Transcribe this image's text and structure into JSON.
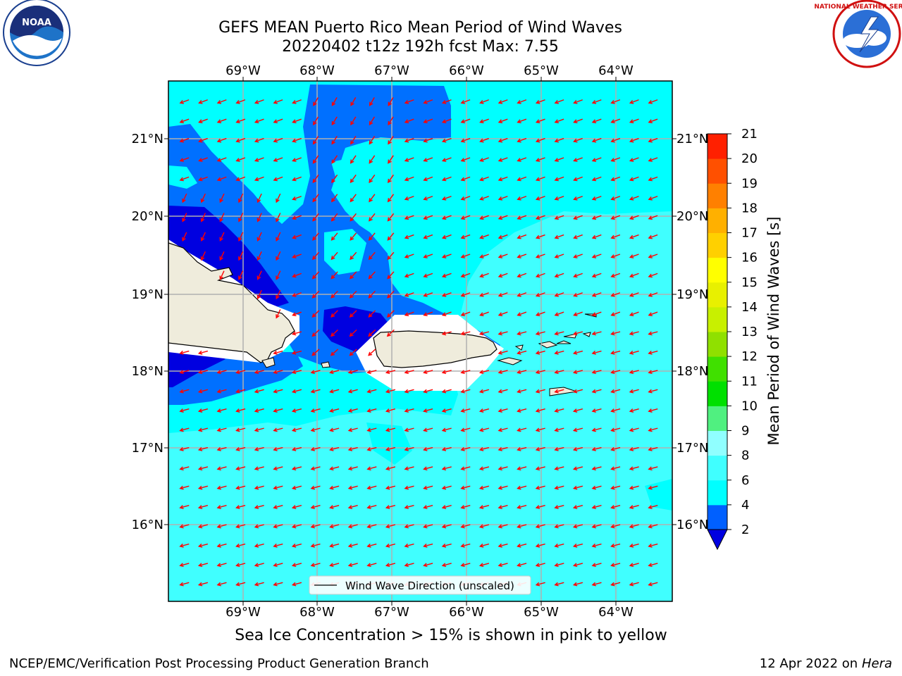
{
  "header": {
    "title_line1": "GEFS MEAN Puerto Rico Mean Period of Wind Waves",
    "title_line2": "20220402 t12z 192h fcst   Max: 7.55"
  },
  "logos": {
    "left": "NOAA",
    "right": "NATIONAL WEATHER SERVICE",
    "noaa_ring_text": "NATIONAL OCEANIC AND ATMOSPHERIC ADMINISTRATION · U.S. DEPARTMENT OF COMMERCE"
  },
  "map": {
    "lon_labels": [
      "69°W",
      "68°W",
      "67°W",
      "66°W",
      "65°W",
      "64°W"
    ],
    "lat_labels": [
      "21°N",
      "20°N",
      "19°N",
      "18°N",
      "17°N",
      "16°N"
    ],
    "legend_label": "Wind Wave Direction (unscaled)",
    "wave_direction": "toward west-southwest",
    "colors": {
      "land": "#efecdc",
      "coastline": "#000000",
      "arrows": "#ff0000",
      "grid": "#b0b0b0"
    }
  },
  "colorbar": {
    "label": "Mean Period of Wind Waves [s]",
    "levels": [
      2,
      4,
      6,
      8,
      9,
      10,
      11,
      12,
      13,
      14,
      15,
      16,
      17,
      18,
      19,
      20,
      21
    ],
    "tick_labels": [
      "2",
      "4",
      "6",
      "8",
      "9",
      "10",
      "11",
      "12",
      "13",
      "14",
      "15",
      "16",
      "17",
      "18",
      "19",
      "20",
      "21"
    ],
    "colors": [
      "#0060ff",
      "#00ffff",
      "#40ffff",
      "#90ffff",
      "#50f080",
      "#00e000",
      "#40e000",
      "#90e000",
      "#c8f000",
      "#e8f000",
      "#ffff00",
      "#ffd000",
      "#ffb000",
      "#ff8000",
      "#ff5000",
      "#ff2000"
    ],
    "under_color": "#0000e0"
  },
  "fill_colors": {
    "band_2_4": "#0070ff",
    "band_4_6": "#00ffff",
    "band_6_8": "#40ffff",
    "below_2": "#0000e0",
    "missing": "#ffffff"
  },
  "footer": {
    "note": "Sea Ice Concentration > 15% is shown in pink to yellow",
    "left": "NCEP/EMC/Verification Post Processing Product Generation Branch",
    "right_prefix": "12 Apr 2022 on ",
    "right_italic": "Hera"
  }
}
